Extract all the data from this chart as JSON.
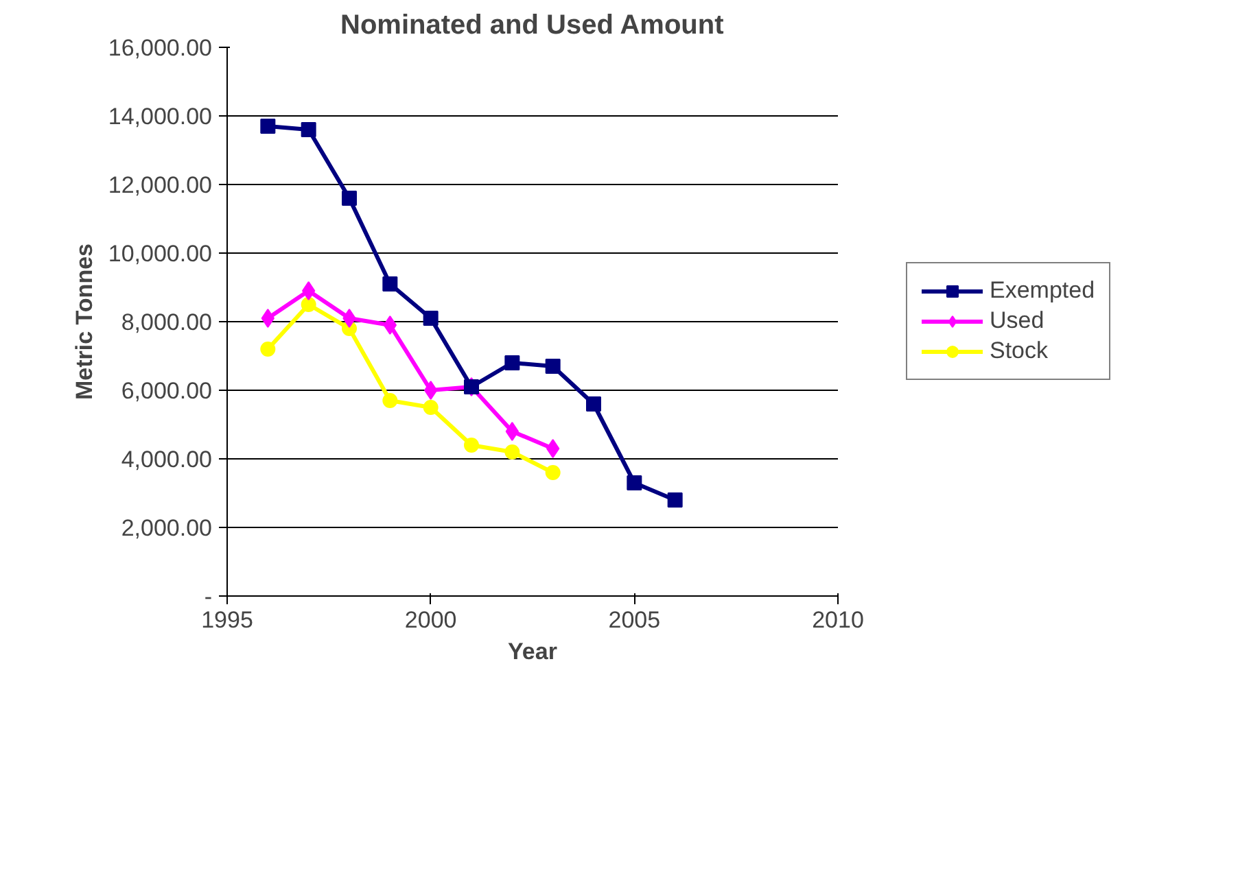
{
  "chart_data": {
    "type": "line",
    "title": "Nominated and Used Amount",
    "xlabel": "Year",
    "ylabel": "Metric Tonnes",
    "xlim": [
      1995,
      2010
    ],
    "xticks": [
      1995,
      2000,
      2005,
      2010
    ],
    "ylim": [
      0,
      16000
    ],
    "yticks": [
      {
        "value": 0,
        "label": "-"
      },
      {
        "value": 2000,
        "label": "2,000.00"
      },
      {
        "value": 4000,
        "label": "4,000.00"
      },
      {
        "value": 6000,
        "label": "6,000.00"
      },
      {
        "value": 8000,
        "label": "8,000.00"
      },
      {
        "value": 10000,
        "label": "10,000.00"
      },
      {
        "value": 12000,
        "label": "12,000.00"
      },
      {
        "value": 14000,
        "label": "14,000.00"
      },
      {
        "value": 16000,
        "label": "16,000.00"
      }
    ],
    "grid": "y",
    "legend": "right",
    "line_style": "solid",
    "series": [
      {
        "name": "Exempted",
        "color": "#000080",
        "marker": "square",
        "x": [
          1996,
          1997,
          1998,
          1999,
          2000,
          2001,
          2002,
          2003,
          2004,
          2005,
          2006
        ],
        "values": [
          13700,
          13600,
          11600,
          9100,
          8100,
          6100,
          6800,
          6700,
          5600,
          3300,
          2800
        ]
      },
      {
        "name": "Used",
        "color": "#ff00ff",
        "marker": "diamond",
        "x": [
          1996,
          1997,
          1998,
          1999,
          2000,
          2001,
          2002,
          2003
        ],
        "values": [
          8100,
          8900,
          8100,
          7900,
          6000,
          6100,
          4800,
          4300
        ]
      },
      {
        "name": "Stock",
        "color": "#ffff00",
        "marker": "circle",
        "x": [
          1996,
          1997,
          1998,
          1999,
          2000,
          2001,
          2002,
          2003
        ],
        "values": [
          7200,
          8500,
          7800,
          5700,
          5500,
          4400,
          4200,
          3600
        ]
      }
    ]
  }
}
